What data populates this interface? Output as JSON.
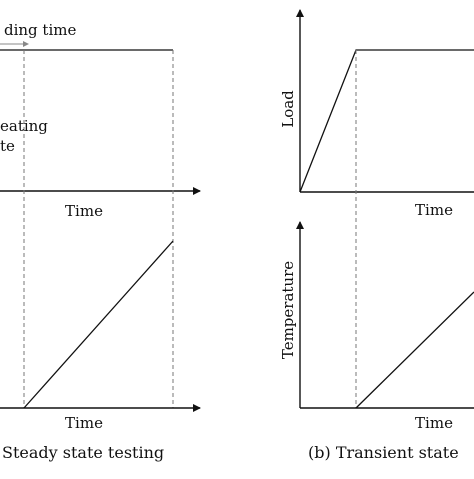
{
  "panel_a": {
    "top_label": "ding time",
    "side_label_line1": "eating",
    "side_label_line2": "te",
    "top_xlabel": "Time",
    "bottom_xlabel": "Time",
    "caption": "Steady state testing"
  },
  "panel_b": {
    "top_ylabel": "Load",
    "top_xlabel": "Time",
    "bottom_ylabel": "Temperature",
    "bottom_xlabel": "Time",
    "caption": "(b) Transient state"
  }
}
